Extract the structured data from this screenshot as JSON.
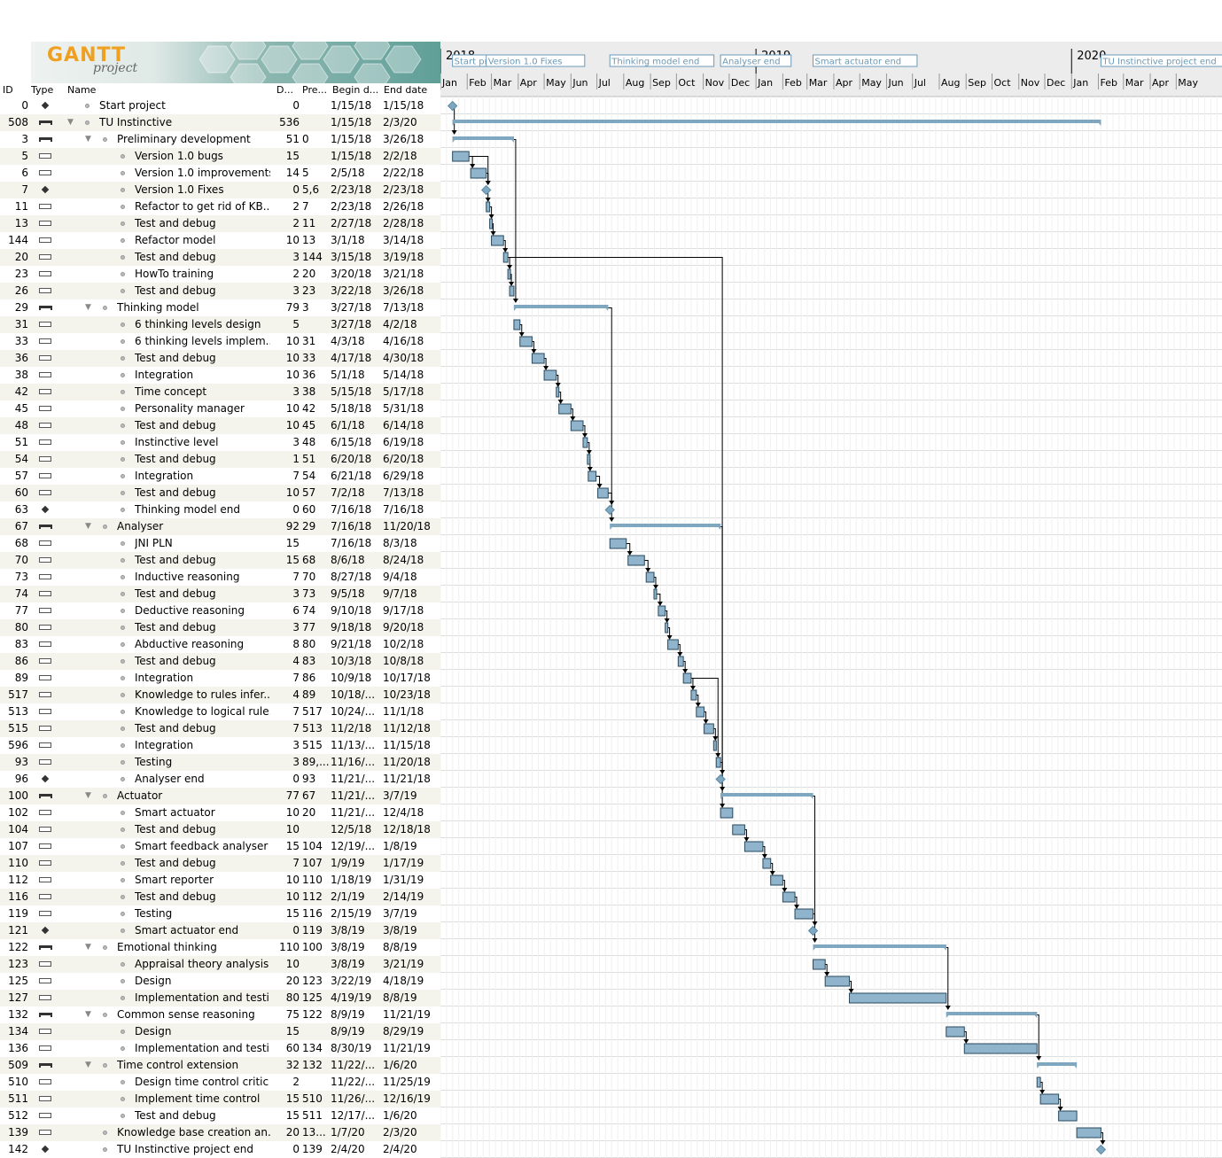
{
  "app": {
    "logo_text": "GANTT",
    "logo_sub": "project"
  },
  "columns": {
    "id": "ID",
    "type": "Type",
    "name": "Name",
    "duration": "D...",
    "predecessors": "Pre...",
    "begin": "Begin d...",
    "end": "End date"
  },
  "timeline": {
    "years": [
      {
        "label": "2018"
      },
      {
        "label": "2019"
      },
      {
        "label": "2020"
      }
    ],
    "months": [
      "Jan",
      "Feb",
      "Mar",
      "Apr",
      "May",
      "Jun",
      "Jul",
      "Aug",
      "Sep",
      "Oct",
      "Nov",
      "Dec",
      "Jan",
      "Feb",
      "Mar",
      "Apr",
      "May",
      "Jun",
      "Jul",
      "Aug",
      "Sep",
      "Oct",
      "Nov",
      "Dec",
      "Jan",
      "Feb",
      "Mar",
      "Apr",
      "May"
    ],
    "start_date": "2018-01-01",
    "milestone_labels": [
      {
        "text": "Start pr",
        "date": "2018-01-15"
      },
      {
        "text": "Version 1.0 Fixes",
        "date": "2018-02-23"
      },
      {
        "text": "Thinking model end",
        "date": "2018-07-16"
      },
      {
        "text": "Analyser end",
        "date": "2018-11-21"
      },
      {
        "text": "Smart actuator end",
        "date": "2019-03-08"
      },
      {
        "text": "TU Instinctive project end",
        "date": "2020-02-04"
      }
    ]
  },
  "tasks": [
    {
      "id": "0",
      "type": "milestone",
      "level": 1,
      "name": "Start project",
      "dur": "0",
      "pre": "",
      "begin": "1/15/18",
      "end": "1/15/18",
      "s": "2018-01-15",
      "e": "2018-01-15"
    },
    {
      "id": "508",
      "type": "summary",
      "level": 1,
      "name": "TU Instinctive",
      "dur": "536",
      "pre": "",
      "begin": "1/15/18",
      "end": "2/3/20",
      "s": "2018-01-15",
      "e": "2020-02-03",
      "toggle": true
    },
    {
      "id": "3",
      "type": "summary",
      "level": 2,
      "name": "Preliminary development",
      "dur": "51",
      "pre": "0",
      "begin": "1/15/18",
      "end": "3/26/18",
      "s": "2018-01-15",
      "e": "2018-03-26",
      "toggle": true
    },
    {
      "id": "5",
      "type": "task",
      "level": 3,
      "name": "Version 1.0 bugs",
      "dur": "15",
      "pre": "",
      "begin": "1/15/18",
      "end": "2/2/18",
      "s": "2018-01-15",
      "e": "2018-02-02"
    },
    {
      "id": "6",
      "type": "task",
      "level": 3,
      "name": "Version 1.0 improvements",
      "dur": "14",
      "pre": "5",
      "begin": "2/5/18",
      "end": "2/22/18",
      "s": "2018-02-05",
      "e": "2018-02-22"
    },
    {
      "id": "7",
      "type": "milestone",
      "level": 3,
      "name": "Version 1.0 Fixes",
      "dur": "0",
      "pre": "5,6",
      "begin": "2/23/18",
      "end": "2/23/18",
      "s": "2018-02-23",
      "e": "2018-02-23"
    },
    {
      "id": "11",
      "type": "task",
      "level": 3,
      "name": "Refactor to get rid of KB...",
      "dur": "2",
      "pre": "7",
      "begin": "2/23/18",
      "end": "2/26/18",
      "s": "2018-02-23",
      "e": "2018-02-26"
    },
    {
      "id": "13",
      "type": "task",
      "level": 3,
      "name": "Test and debug",
      "dur": "2",
      "pre": "11",
      "begin": "2/27/18",
      "end": "2/28/18",
      "s": "2018-02-27",
      "e": "2018-02-28"
    },
    {
      "id": "144",
      "type": "task",
      "level": 3,
      "name": "Refactor model",
      "dur": "10",
      "pre": "13",
      "begin": "3/1/18",
      "end": "3/14/18",
      "s": "2018-03-01",
      "e": "2018-03-14"
    },
    {
      "id": "20",
      "type": "task",
      "level": 3,
      "name": "Test and debug",
      "dur": "3",
      "pre": "144",
      "begin": "3/15/18",
      "end": "3/19/18",
      "s": "2018-03-15",
      "e": "2018-03-19"
    },
    {
      "id": "23",
      "type": "task",
      "level": 3,
      "name": "HowTo training",
      "dur": "2",
      "pre": "20",
      "begin": "3/20/18",
      "end": "3/21/18",
      "s": "2018-03-20",
      "e": "2018-03-21"
    },
    {
      "id": "26",
      "type": "task",
      "level": 3,
      "name": "Test and debug",
      "dur": "3",
      "pre": "23",
      "begin": "3/22/18",
      "end": "3/26/18",
      "s": "2018-03-22",
      "e": "2018-03-26"
    },
    {
      "id": "29",
      "type": "summary",
      "level": 2,
      "name": "Thinking model",
      "dur": "79",
      "pre": "3",
      "begin": "3/27/18",
      "end": "7/13/18",
      "s": "2018-03-27",
      "e": "2018-07-13",
      "toggle": true
    },
    {
      "id": "31",
      "type": "task",
      "level": 3,
      "name": "6 thinking levels design",
      "dur": "5",
      "pre": "",
      "begin": "3/27/18",
      "end": "4/2/18",
      "s": "2018-03-27",
      "e": "2018-04-02"
    },
    {
      "id": "33",
      "type": "task",
      "level": 3,
      "name": "6 thinking levels implem...",
      "dur": "10",
      "pre": "31",
      "begin": "4/3/18",
      "end": "4/16/18",
      "s": "2018-04-03",
      "e": "2018-04-16"
    },
    {
      "id": "36",
      "type": "task",
      "level": 3,
      "name": "Test and debug",
      "dur": "10",
      "pre": "33",
      "begin": "4/17/18",
      "end": "4/30/18",
      "s": "2018-04-17",
      "e": "2018-04-30"
    },
    {
      "id": "38",
      "type": "task",
      "level": 3,
      "name": "Integration",
      "dur": "10",
      "pre": "36",
      "begin": "5/1/18",
      "end": "5/14/18",
      "s": "2018-05-01",
      "e": "2018-05-14"
    },
    {
      "id": "42",
      "type": "task",
      "level": 3,
      "name": "Time concept",
      "dur": "3",
      "pre": "38",
      "begin": "5/15/18",
      "end": "5/17/18",
      "s": "2018-05-15",
      "e": "2018-05-17"
    },
    {
      "id": "45",
      "type": "task",
      "level": 3,
      "name": "Personality manager",
      "dur": "10",
      "pre": "42",
      "begin": "5/18/18",
      "end": "5/31/18",
      "s": "2018-05-18",
      "e": "2018-05-31"
    },
    {
      "id": "48",
      "type": "task",
      "level": 3,
      "name": "Test and debug",
      "dur": "10",
      "pre": "45",
      "begin": "6/1/18",
      "end": "6/14/18",
      "s": "2018-06-01",
      "e": "2018-06-14"
    },
    {
      "id": "51",
      "type": "task",
      "level": 3,
      "name": "Instinctive level",
      "dur": "3",
      "pre": "48",
      "begin": "6/15/18",
      "end": "6/19/18",
      "s": "2018-06-15",
      "e": "2018-06-19"
    },
    {
      "id": "54",
      "type": "task",
      "level": 3,
      "name": "Test and debug",
      "dur": "1",
      "pre": "51",
      "begin": "6/20/18",
      "end": "6/20/18",
      "s": "2018-06-20",
      "e": "2018-06-20"
    },
    {
      "id": "57",
      "type": "task",
      "level": 3,
      "name": "Integration",
      "dur": "7",
      "pre": "54",
      "begin": "6/21/18",
      "end": "6/29/18",
      "s": "2018-06-21",
      "e": "2018-06-29"
    },
    {
      "id": "60",
      "type": "task",
      "level": 3,
      "name": "Test and debug",
      "dur": "10",
      "pre": "57",
      "begin": "7/2/18",
      "end": "7/13/18",
      "s": "2018-07-02",
      "e": "2018-07-13"
    },
    {
      "id": "63",
      "type": "milestone",
      "level": 3,
      "name": "Thinking model end",
      "dur": "0",
      "pre": "60",
      "begin": "7/16/18",
      "end": "7/16/18",
      "s": "2018-07-16",
      "e": "2018-07-16"
    },
    {
      "id": "67",
      "type": "summary",
      "level": 2,
      "name": "Analyser",
      "dur": "92",
      "pre": "29",
      "begin": "7/16/18",
      "end": "11/20/18",
      "s": "2018-07-16",
      "e": "2018-11-20",
      "toggle": true
    },
    {
      "id": "68",
      "type": "task",
      "level": 3,
      "name": "JNI PLN",
      "dur": "15",
      "pre": "",
      "begin": "7/16/18",
      "end": "8/3/18",
      "s": "2018-07-16",
      "e": "2018-08-03"
    },
    {
      "id": "70",
      "type": "task",
      "level": 3,
      "name": "Test and debug",
      "dur": "15",
      "pre": "68",
      "begin": "8/6/18",
      "end": "8/24/18",
      "s": "2018-08-06",
      "e": "2018-08-24"
    },
    {
      "id": "73",
      "type": "task",
      "level": 3,
      "name": "Inductive reasoning",
      "dur": "7",
      "pre": "70",
      "begin": "8/27/18",
      "end": "9/4/18",
      "s": "2018-08-27",
      "e": "2018-09-04"
    },
    {
      "id": "74",
      "type": "task",
      "level": 3,
      "name": "Test and debug",
      "dur": "3",
      "pre": "73",
      "begin": "9/5/18",
      "end": "9/7/18",
      "s": "2018-09-05",
      "e": "2018-09-07"
    },
    {
      "id": "77",
      "type": "task",
      "level": 3,
      "name": "Deductive reasoning",
      "dur": "6",
      "pre": "74",
      "begin": "9/10/18",
      "end": "9/17/18",
      "s": "2018-09-10",
      "e": "2018-09-17"
    },
    {
      "id": "80",
      "type": "task",
      "level": 3,
      "name": "Test and debug",
      "dur": "3",
      "pre": "77",
      "begin": "9/18/18",
      "end": "9/20/18",
      "s": "2018-09-18",
      "e": "2018-09-20"
    },
    {
      "id": "83",
      "type": "task",
      "level": 3,
      "name": "Abductive reasoning",
      "dur": "8",
      "pre": "80",
      "begin": "9/21/18",
      "end": "10/2/18",
      "s": "2018-09-21",
      "e": "2018-10-02"
    },
    {
      "id": "86",
      "type": "task",
      "level": 3,
      "name": "Test and debug",
      "dur": "4",
      "pre": "83",
      "begin": "10/3/18",
      "end": "10/8/18",
      "s": "2018-10-03",
      "e": "2018-10-08"
    },
    {
      "id": "89",
      "type": "task",
      "level": 3,
      "name": "Integration",
      "dur": "7",
      "pre": "86",
      "begin": "10/9/18",
      "end": "10/17/18",
      "s": "2018-10-09",
      "e": "2018-10-17"
    },
    {
      "id": "517",
      "type": "task",
      "level": 3,
      "name": "Knowledge to rules infer...",
      "dur": "4",
      "pre": "89",
      "begin": "10/18/...",
      "end": "10/23/18",
      "s": "2018-10-18",
      "e": "2018-10-23"
    },
    {
      "id": "513",
      "type": "task",
      "level": 3,
      "name": "Knowledge to logical rule...",
      "dur": "7",
      "pre": "517",
      "begin": "10/24/...",
      "end": "11/1/18",
      "s": "2018-10-24",
      "e": "2018-11-01"
    },
    {
      "id": "515",
      "type": "task",
      "level": 3,
      "name": "Test and debug",
      "dur": "7",
      "pre": "513",
      "begin": "11/2/18",
      "end": "11/12/18",
      "s": "2018-11-02",
      "e": "2018-11-12"
    },
    {
      "id": "596",
      "type": "task",
      "level": 3,
      "name": "Integration",
      "dur": "3",
      "pre": "515",
      "begin": "11/13/...",
      "end": "11/15/18",
      "s": "2018-11-13",
      "e": "2018-11-15"
    },
    {
      "id": "93",
      "type": "task",
      "level": 3,
      "name": "Testing",
      "dur": "3",
      "pre": "89,...",
      "begin": "11/16/...",
      "end": "11/20/18",
      "s": "2018-11-16",
      "e": "2018-11-20"
    },
    {
      "id": "96",
      "type": "milestone",
      "level": 3,
      "name": "Analyser end",
      "dur": "0",
      "pre": "93",
      "begin": "11/21/...",
      "end": "11/21/18",
      "s": "2018-11-21",
      "e": "2018-11-21"
    },
    {
      "id": "100",
      "type": "summary",
      "level": 2,
      "name": "Actuator",
      "dur": "77",
      "pre": "67",
      "begin": "11/21/...",
      "end": "3/7/19",
      "s": "2018-11-21",
      "e": "2019-03-07",
      "toggle": true
    },
    {
      "id": "102",
      "type": "task",
      "level": 3,
      "name": "Smart actuator",
      "dur": "10",
      "pre": "20",
      "begin": "11/21/...",
      "end": "12/4/18",
      "s": "2018-11-21",
      "e": "2018-12-04"
    },
    {
      "id": "104",
      "type": "task",
      "level": 3,
      "name": "Test and debug",
      "dur": "10",
      "pre": "",
      "begin": "12/5/18",
      "end": "12/18/18",
      "s": "2018-12-05",
      "e": "2018-12-18"
    },
    {
      "id": "107",
      "type": "task",
      "level": 3,
      "name": "Smart feedback analyser",
      "dur": "15",
      "pre": "104",
      "begin": "12/19/...",
      "end": "1/8/19",
      "s": "2018-12-19",
      "e": "2019-01-08"
    },
    {
      "id": "110",
      "type": "task",
      "level": 3,
      "name": "Test and debug",
      "dur": "7",
      "pre": "107",
      "begin": "1/9/19",
      "end": "1/17/19",
      "s": "2019-01-09",
      "e": "2019-01-17"
    },
    {
      "id": "112",
      "type": "task",
      "level": 3,
      "name": "Smart reporter",
      "dur": "10",
      "pre": "110",
      "begin": "1/18/19",
      "end": "1/31/19",
      "s": "2019-01-18",
      "e": "2019-01-31"
    },
    {
      "id": "116",
      "type": "task",
      "level": 3,
      "name": "Test and debug",
      "dur": "10",
      "pre": "112",
      "begin": "2/1/19",
      "end": "2/14/19",
      "s": "2019-02-01",
      "e": "2019-02-14"
    },
    {
      "id": "119",
      "type": "task",
      "level": 3,
      "name": "Testing",
      "dur": "15",
      "pre": "116",
      "begin": "2/15/19",
      "end": "3/7/19",
      "s": "2019-02-15",
      "e": "2019-03-07"
    },
    {
      "id": "121",
      "type": "milestone",
      "level": 3,
      "name": "Smart actuator end",
      "dur": "0",
      "pre": "119",
      "begin": "3/8/19",
      "end": "3/8/19",
      "s": "2019-03-08",
      "e": "2019-03-08"
    },
    {
      "id": "122",
      "type": "summary",
      "level": 2,
      "name": "Emotional thinking",
      "dur": "110",
      "pre": "100",
      "begin": "3/8/19",
      "end": "8/8/19",
      "s": "2019-03-08",
      "e": "2019-08-08",
      "toggle": true
    },
    {
      "id": "123",
      "type": "task",
      "level": 3,
      "name": "Appraisal theory analysis",
      "dur": "10",
      "pre": "",
      "begin": "3/8/19",
      "end": "3/21/19",
      "s": "2019-03-08",
      "e": "2019-03-21"
    },
    {
      "id": "125",
      "type": "task",
      "level": 3,
      "name": "Design",
      "dur": "20",
      "pre": "123",
      "begin": "3/22/19",
      "end": "4/18/19",
      "s": "2019-03-22",
      "e": "2019-04-18"
    },
    {
      "id": "127",
      "type": "task",
      "level": 3,
      "name": "Implementation and testi...",
      "dur": "80",
      "pre": "125",
      "begin": "4/19/19",
      "end": "8/8/19",
      "s": "2019-04-19",
      "e": "2019-08-08"
    },
    {
      "id": "132",
      "type": "summary",
      "level": 2,
      "name": "Common sense reasoning",
      "dur": "75",
      "pre": "122",
      "begin": "8/9/19",
      "end": "11/21/19",
      "s": "2019-08-09",
      "e": "2019-11-21",
      "toggle": true
    },
    {
      "id": "134",
      "type": "task",
      "level": 3,
      "name": "Design",
      "dur": "15",
      "pre": "",
      "begin": "8/9/19",
      "end": "8/29/19",
      "s": "2019-08-09",
      "e": "2019-08-29"
    },
    {
      "id": "136",
      "type": "task",
      "level": 3,
      "name": "Implementation and testi...",
      "dur": "60",
      "pre": "134",
      "begin": "8/30/19",
      "end": "11/21/19",
      "s": "2019-08-30",
      "e": "2019-11-21"
    },
    {
      "id": "509",
      "type": "summary",
      "level": 2,
      "name": "Time control extension",
      "dur": "32",
      "pre": "132",
      "begin": "11/22/...",
      "end": "1/6/20",
      "s": "2019-11-22",
      "e": "2020-01-06",
      "toggle": true
    },
    {
      "id": "510",
      "type": "task",
      "level": 3,
      "name": "Design time control critic",
      "dur": "2",
      "pre": "",
      "begin": "11/22/...",
      "end": "11/25/19",
      "s": "2019-11-22",
      "e": "2019-11-25"
    },
    {
      "id": "511",
      "type": "task",
      "level": 3,
      "name": "Implement time control",
      "dur": "15",
      "pre": "510",
      "begin": "11/26/...",
      "end": "12/16/19",
      "s": "2019-11-26",
      "e": "2019-12-16"
    },
    {
      "id": "512",
      "type": "task",
      "level": 3,
      "name": "Test and debug",
      "dur": "15",
      "pre": "511",
      "begin": "12/17/...",
      "end": "1/6/20",
      "s": "2019-12-17",
      "e": "2020-01-06"
    },
    {
      "id": "139",
      "type": "task",
      "level": 2,
      "name": "Knowledge base creation an...",
      "dur": "20",
      "pre": "13...",
      "begin": "1/7/20",
      "end": "2/3/20",
      "s": "2020-01-07",
      "e": "2020-02-03"
    },
    {
      "id": "142",
      "type": "milestone",
      "level": 2,
      "name": "TU Instinctive project end",
      "dur": "0",
      "pre": "139",
      "begin": "2/4/20",
      "end": "2/4/20",
      "s": "2020-02-04",
      "e": "2020-02-04"
    }
  ],
  "colors": {
    "bar": "#8fb4cc",
    "bar_border": "#2a4a5e",
    "summary": "#7fa8c0",
    "milestone": "#7fa8c0",
    "row_alt": "#f4f4ec",
    "grid": "#e0e0e0",
    "arrow": "#000000",
    "label_text": "#6a9ab8"
  }
}
